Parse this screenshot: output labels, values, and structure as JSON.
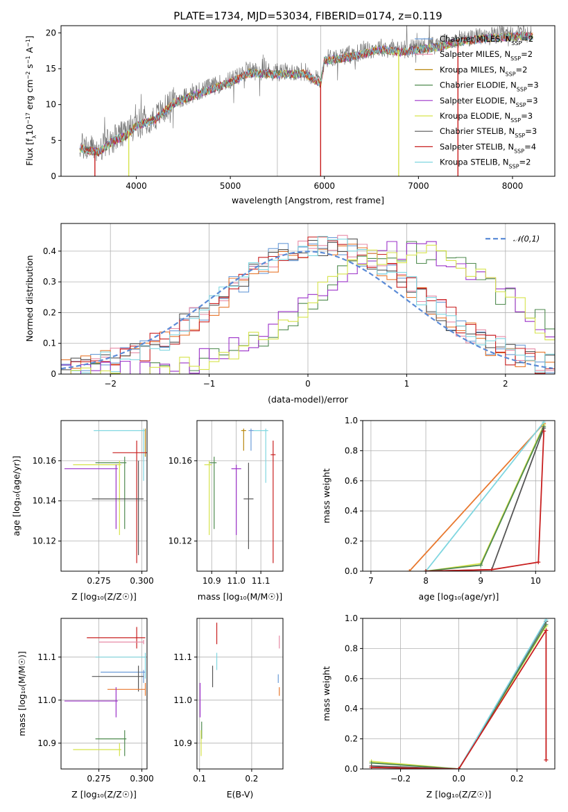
{
  "colors": {
    "Chabrier MILES": "#6a9bd8",
    "Salpeter MILES": "#e78aa6",
    "Kroupa MILES": "#b8860b",
    "Chabrier ELODIE": "#4e8a4e",
    "Salpeter ELODIE": "#9b30c8",
    "Kroupa ELODIE": "#d6e34a",
    "Chabrier STELIB": "#555555",
    "Salpeter STELIB": "#c81e1e",
    "Kroupa STELIB": "#7fd6e0",
    "orange": "#e8782e",
    "gauss": "#5b8bd6"
  },
  "chart_data": [
    {
      "id": "spectrum",
      "type": "line",
      "title": "PLATE=1734, MJD=53034, FIBERID=0174, z=0.119",
      "xlabel": "wavelength [Angstrom, rest frame]",
      "ylabel": "Flux [fλ10⁻¹⁷ erg cm⁻² s⁻¹ A⁻¹]",
      "xlim": [
        3200,
        8450
      ],
      "ylim": [
        0,
        21
      ],
      "xticks": [
        4000,
        5000,
        6000,
        7000,
        8000
      ],
      "yticks": [
        0,
        5,
        10,
        15,
        20
      ],
      "grid_x": [
        5500,
        5960
      ],
      "legend": [
        {
          "name": "Chabrier MILES",
          "base": "Chabrier MILES, N",
          "sub": "SSP",
          "tail": "=2"
        },
        {
          "name": "Salpeter MILES",
          "base": "Salpeter MILES, N",
          "sub": "SSP",
          "tail": "=2"
        },
        {
          "name": "Kroupa MILES",
          "base": "Kroupa MILES, N",
          "sub": "SSP",
          "tail": "=2"
        },
        {
          "name": "Chabrier ELODIE",
          "base": "Chabrier ELODIE, N",
          "sub": "SSP",
          "tail": "=3"
        },
        {
          "name": "Salpeter ELODIE",
          "base": "Salpeter ELODIE, N",
          "sub": "SSP",
          "tail": "=3"
        },
        {
          "name": "Kroupa ELODIE",
          "base": "Kroupa ELODIE, N",
          "sub": "SSP",
          "tail": "=3"
        },
        {
          "name": "Chabrier STELIB",
          "base": "Chabrier STELIB, N",
          "sub": "SSP",
          "tail": "=3"
        },
        {
          "name": "Salpeter STELIB",
          "base": "Salpeter STELIB, N",
          "sub": "SSP",
          "tail": "=4"
        },
        {
          "name": "Kroupa STELIB",
          "base": "Kroupa STELIB, N",
          "sub": "SSP",
          "tail": "=2"
        }
      ],
      "legend_placement": "upper-right",
      "continuum_points": [
        [
          3400,
          4.2
        ],
        [
          3600,
          3.6
        ],
        [
          3750,
          5.2
        ],
        [
          3900,
          6.0
        ],
        [
          4000,
          7.4
        ],
        [
          4200,
          8.2
        ],
        [
          4400,
          10.5
        ],
        [
          4700,
          12.0
        ],
        [
          5000,
          13.4
        ],
        [
          5200,
          14.7
        ],
        [
          5500,
          14.5
        ],
        [
          5800,
          14.6
        ],
        [
          5960,
          13.2
        ],
        [
          6000,
          16.4
        ],
        [
          6300,
          17.0
        ],
        [
          6600,
          18.0
        ],
        [
          6800,
          17.6
        ],
        [
          7000,
          18.0
        ],
        [
          7200,
          18.3
        ],
        [
          7400,
          19.0
        ],
        [
          7700,
          19.5
        ],
        [
          8000,
          19.8
        ],
        [
          8200,
          19.8
        ]
      ]
    },
    {
      "id": "residuals",
      "type": "line",
      "xlabel": "(data-model)/error",
      "ylabel": "Normed distribution",
      "xlim": [
        -2.5,
        2.5
      ],
      "ylim": [
        0,
        0.49
      ],
      "xticks": [
        -2,
        -1,
        0,
        1,
        2
      ],
      "yticks": [
        0.0,
        0.1,
        0.2,
        0.3,
        0.4
      ],
      "legend": [
        {
          "name": "gauss",
          "label": "𝒩(0,1)"
        }
      ],
      "legend_placement": "upper-right",
      "gaussian": {
        "mean": 0,
        "sigma": 1
      },
      "histograms": {
        "broad": {
          "center": 0.15,
          "sigma": 1.0,
          "peak": 0.42
        },
        "shifted": {
          "center": 1.05,
          "sigma": 1.0,
          "peak": 0.4
        }
      }
    },
    {
      "id": "z-age",
      "type": "scatter",
      "xlabel": "Z [log₁₀(Z/Z☉)]",
      "ylabel": "age  [log₁₀(age/yr)]",
      "xlim": [
        0.253,
        0.303
      ],
      "ylim": [
        10.105,
        10.18
      ],
      "xticks": [
        "0.275",
        "0.300"
      ],
      "yticks": [
        "10.12",
        "10.14",
        "10.16"
      ],
      "points": [
        {
          "s": "Kroupa STELIB",
          "x": 0.301,
          "y": 10.175,
          "x0": 0.272,
          "x1": 0.302,
          "y0": 10.15,
          "y1": 10.176
        },
        {
          "s": "Kroupa MILES",
          "x": 0.302,
          "y": 10.175,
          "x0": 0.302,
          "x1": 0.302,
          "y0": 10.162,
          "y1": 10.176
        },
        {
          "s": "Salpeter STELIB",
          "x": 0.297,
          "y": 10.164,
          "x0": 0.283,
          "x1": 0.303,
          "y0": 10.109,
          "y1": 10.17
        },
        {
          "s": "Chabrier ELODIE",
          "x": 0.29,
          "y": 10.159,
          "x0": 0.273,
          "x1": 0.291,
          "y0": 10.126,
          "y1": 10.162
        },
        {
          "s": "Kroupa ELODIE",
          "x": 0.287,
          "y": 10.158,
          "x0": 0.26,
          "x1": 0.288,
          "y0": 10.123,
          "y1": 10.16
        },
        {
          "s": "Salpeter ELODIE",
          "x": 0.285,
          "y": 10.156,
          "x0": 0.255,
          "x1": 0.286,
          "y0": 10.126,
          "y1": 10.158
        },
        {
          "s": "Chabrier STELIB",
          "x": 0.298,
          "y": 10.141,
          "x0": 0.271,
          "x1": 0.301,
          "y0": 10.113,
          "y1": 10.16
        }
      ]
    },
    {
      "id": "mass-age",
      "type": "scatter",
      "xlabel": "mass [log₁₀(M/M☉)]",
      "xlim": [
        10.84,
        11.19
      ],
      "ylim": [
        10.105,
        10.18
      ],
      "xticks": [
        "10.9",
        "11.0",
        "11.1"
      ],
      "yticks": [
        "10.12",
        "10.16"
      ],
      "points": [
        {
          "s": "Kroupa MILES",
          "x": 11.03,
          "y": 10.175,
          "x0": 11.02,
          "x1": 11.04,
          "y0": 10.165,
          "y1": 10.176
        },
        {
          "s": "Chabrier MILES",
          "x": 11.06,
          "y": 10.175,
          "x0": 11.05,
          "x1": 11.07,
          "y0": 10.165,
          "y1": 10.176
        },
        {
          "s": "Kroupa STELIB",
          "x": 11.12,
          "y": 10.175,
          "x0": 11.07,
          "x1": 11.13,
          "y0": 10.149,
          "y1": 10.176
        },
        {
          "s": "Salpeter STELIB",
          "x": 11.15,
          "y": 10.163,
          "x0": 11.14,
          "x1": 11.16,
          "y0": 10.109,
          "y1": 10.17
        },
        {
          "s": "Chabrier ELODIE",
          "x": 10.91,
          "y": 10.159,
          "x0": 10.89,
          "x1": 10.92,
          "y0": 10.126,
          "y1": 10.162
        },
        {
          "s": "Kroupa ELODIE",
          "x": 10.89,
          "y": 10.158,
          "x0": 10.87,
          "x1": 10.9,
          "y0": 10.123,
          "y1": 10.16
        },
        {
          "s": "Salpeter ELODIE",
          "x": 11.0,
          "y": 10.156,
          "x0": 10.98,
          "x1": 11.02,
          "y0": 10.123,
          "y1": 10.158
        },
        {
          "s": "Chabrier STELIB",
          "x": 11.05,
          "y": 10.141,
          "x0": 11.03,
          "x1": 11.07,
          "y0": 10.116,
          "y1": 10.159
        }
      ]
    },
    {
      "id": "age-weight",
      "type": "line",
      "xlabel": "age  [log₁₀(age/yr)]",
      "ylabel": "mass weight",
      "xlim": [
        6.85,
        10.35
      ],
      "ylim": [
        0,
        1.0
      ],
      "xticks": [
        "7",
        "8",
        "9",
        "10"
      ],
      "yticks": [
        "0.0",
        "0.2",
        "0.4",
        "0.6",
        "0.8",
        "1.0"
      ],
      "series": [
        {
          "s": "orange",
          "points": [
            [
              7.7,
              0.0
            ],
            [
              10.15,
              0.98
            ]
          ]
        },
        {
          "s": "Kroupa STELIB",
          "points": [
            [
              8.0,
              0.0
            ],
            [
              10.15,
              0.99
            ]
          ]
        },
        {
          "s": "Kroupa ELODIE",
          "points": [
            [
              8.0,
              0.0
            ],
            [
              9.0,
              0.05
            ],
            [
              10.15,
              0.97
            ]
          ]
        },
        {
          "s": "Chabrier ELODIE",
          "points": [
            [
              8.0,
              0.0
            ],
            [
              9.0,
              0.04
            ],
            [
              10.15,
              0.96
            ]
          ]
        },
        {
          "s": "Chabrier STELIB",
          "points": [
            [
              8.0,
              0.0
            ],
            [
              9.2,
              0.01
            ],
            [
              10.15,
              0.95
            ]
          ]
        },
        {
          "s": "Salpeter STELIB",
          "points": [
            [
              8.0,
              0.0
            ],
            [
              9.2,
              0.01
            ],
            [
              10.05,
              0.06
            ],
            [
              10.15,
              0.93
            ]
          ]
        }
      ]
    },
    {
      "id": "z-mass",
      "type": "scatter",
      "xlabel": "Z [log₁₀(Z/Z☉)]",
      "ylabel": "mass [log₁₀(M/M☉)]",
      "xlim": [
        0.253,
        0.303
      ],
      "ylim": [
        10.84,
        11.19
      ],
      "xticks": [
        "0.275",
        "0.300"
      ],
      "yticks": [
        "10.9",
        "11.0",
        "11.1"
      ],
      "points": [
        {
          "s": "Salpeter STELIB",
          "x": 0.297,
          "y": 11.145,
          "x0": 0.268,
          "x1": 0.302,
          "y0": 11.12,
          "y1": 11.17
        },
        {
          "s": "Salpeter MILES",
          "x": 0.301,
          "y": 11.135,
          "x0": 0.275,
          "x1": 0.301,
          "y0": 11.13,
          "y1": 11.14
        },
        {
          "s": "Kroupa STELIB",
          "x": 0.302,
          "y": 11.1,
          "x0": 0.273,
          "x1": 0.302,
          "y0": 11.05,
          "y1": 11.11
        },
        {
          "s": "Chabrier MILES",
          "x": 0.301,
          "y": 11.065,
          "x0": 0.276,
          "x1": 0.302,
          "y0": 11.04,
          "y1": 11.07
        },
        {
          "s": "Chabrier STELIB",
          "x": 0.298,
          "y": 11.055,
          "x0": 0.271,
          "x1": 0.301,
          "y0": 11.02,
          "y1": 11.08
        },
        {
          "s": "orange",
          "x": 0.302,
          "y": 11.025,
          "x0": 0.28,
          "x1": 0.302,
          "y0": 11.01,
          "y1": 11.04
        },
        {
          "s": "Salpeter ELODIE",
          "x": 0.285,
          "y": 10.998,
          "x0": 0.255,
          "x1": 0.286,
          "y0": 10.96,
          "y1": 11.03
        },
        {
          "s": "Chabrier ELODIE",
          "x": 0.29,
          "y": 10.91,
          "x0": 0.273,
          "x1": 0.291,
          "y0": 10.87,
          "y1": 10.93
        },
        {
          "s": "Kroupa ELODIE",
          "x": 0.287,
          "y": 10.885,
          "x0": 0.26,
          "x1": 0.288,
          "y0": 10.87,
          "y1": 10.9
        }
      ]
    },
    {
      "id": "ebv-mass",
      "type": "scatter",
      "xlabel": "E(B-V)",
      "xlim": [
        0.095,
        0.26
      ],
      "ylim": [
        10.84,
        11.19
      ],
      "xticks": [
        "0.1",
        "0.2"
      ],
      "yticks": [
        "10.9",
        "11.0",
        "11.1"
      ],
      "points": [
        {
          "s": "Salpeter STELIB",
          "x": 0.133,
          "y": 11.15,
          "y0": 11.13,
          "y1": 11.18
        },
        {
          "s": "Salpeter MILES",
          "x": 0.253,
          "y": 11.13,
          "y0": 11.12,
          "y1": 11.15
        },
        {
          "s": "Kroupa STELIB",
          "x": 0.133,
          "y": 11.09,
          "y0": 11.07,
          "y1": 11.11
        },
        {
          "s": "Chabrier MILES",
          "x": 0.251,
          "y": 11.05,
          "y0": 11.04,
          "y1": 11.06
        },
        {
          "s": "Chabrier STELIB",
          "x": 0.125,
          "y": 11.06,
          "y0": 11.03,
          "y1": 11.08
        },
        {
          "s": "orange",
          "x": 0.253,
          "y": 11.02,
          "y0": 11.01,
          "y1": 11.03
        },
        {
          "s": "Salpeter ELODIE",
          "x": 0.101,
          "y": 10.998,
          "y0": 10.96,
          "y1": 11.04
        },
        {
          "s": "Chabrier ELODIE",
          "x": 0.104,
          "y": 10.93,
          "y0": 10.91,
          "y1": 10.95
        },
        {
          "s": "Kroupa ELODIE",
          "x": 0.103,
          "y": 10.89,
          "y0": 10.87,
          "y1": 10.93
        }
      ]
    },
    {
      "id": "z-weight",
      "type": "line",
      "xlabel": "Z [log₁₀(Z/Z☉)]",
      "ylabel": "mass weight",
      "xlim": [
        -0.33,
        0.33
      ],
      "ylim": [
        0,
        1.0
      ],
      "xticks": [
        "-0.2",
        "0.0",
        "0.2"
      ],
      "yticks": [
        "0.0",
        "0.2",
        "0.4",
        "0.6",
        "0.8",
        "1.0"
      ],
      "series": [
        {
          "s": "Kroupa ELODIE",
          "points": [
            [
              -0.3,
              0.05
            ],
            [
              0.0,
              0.0
            ],
            [
              0.3,
              0.95
            ]
          ]
        },
        {
          "s": "Chabrier ELODIE",
          "points": [
            [
              -0.3,
              0.04
            ],
            [
              0.0,
              0.0
            ],
            [
              0.3,
              0.96
            ]
          ]
        },
        {
          "s": "Chabrier STELIB",
          "points": [
            [
              -0.3,
              0.02
            ],
            [
              0.0,
              0.0
            ],
            [
              0.3,
              0.98
            ]
          ]
        },
        {
          "s": "Kroupa STELIB",
          "points": [
            [
              -0.3,
              0.01
            ],
            [
              0.0,
              0.0
            ],
            [
              0.3,
              0.99
            ]
          ]
        },
        {
          "s": "Salpeter STELIB",
          "points": [
            [
              -0.3,
              0.01
            ],
            [
              0.0,
              0.0
            ],
            [
              0.3,
              0.92
            ],
            [
              0.3,
              0.06
            ]
          ]
        }
      ]
    }
  ]
}
